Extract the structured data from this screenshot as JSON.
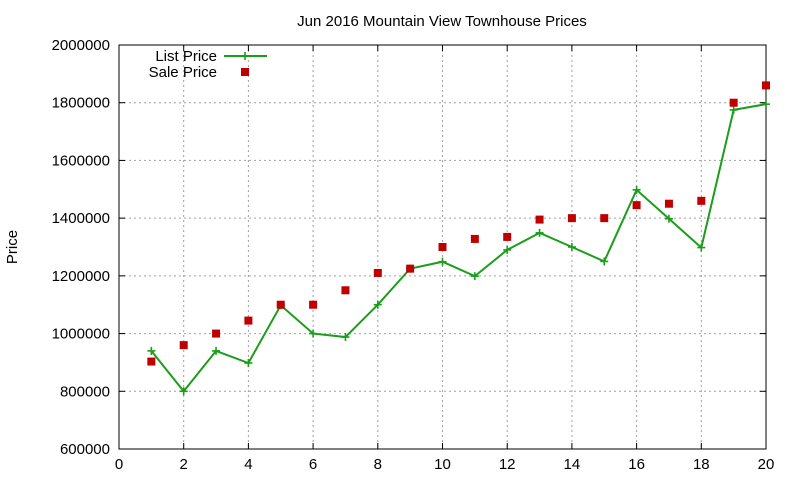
{
  "chart_data": {
    "type": "line",
    "title": "Jun 2016 Mountain View Townhouse Prices",
    "xlabel": "",
    "ylabel": "Price",
    "xlim": [
      0,
      20
    ],
    "ylim": [
      600000,
      2000000
    ],
    "x_ticks": [
      0,
      2,
      4,
      6,
      8,
      10,
      12,
      14,
      16,
      18,
      20
    ],
    "y_ticks": [
      600000,
      800000,
      1000000,
      1200000,
      1400000,
      1600000,
      1800000,
      2000000
    ],
    "grid": true,
    "legend_position": "top-left",
    "series": [
      {
        "name": "List Price",
        "style": "linespoints",
        "marker": "plus",
        "color": "#1a9e1a",
        "x": [
          1,
          2,
          3,
          4,
          5,
          6,
          7,
          8,
          9,
          10,
          11,
          12,
          13,
          14,
          15,
          16,
          17,
          18,
          19,
          20
        ],
        "y": [
          940000,
          800000,
          940000,
          898000,
          1098000,
          1000000,
          988000,
          1100000,
          1225000,
          1249000,
          1199000,
          1290000,
          1349000,
          1300000,
          1250000,
          1498000,
          1398000,
          1298000,
          1775000,
          1795000
        ]
      },
      {
        "name": "Sale Price",
        "style": "points",
        "marker": "square",
        "color": "#c00000",
        "x": [
          1,
          2,
          3,
          4,
          5,
          6,
          7,
          8,
          9,
          10,
          11,
          12,
          13,
          14,
          15,
          16,
          17,
          18,
          19,
          20
        ],
        "y": [
          903000,
          960000,
          1000000,
          1045000,
          1100000,
          1100000,
          1150000,
          1210000,
          1225000,
          1300000,
          1328000,
          1335000,
          1395000,
          1400000,
          1400000,
          1445000,
          1450000,
          1460000,
          1800000,
          1860000
        ]
      }
    ]
  }
}
